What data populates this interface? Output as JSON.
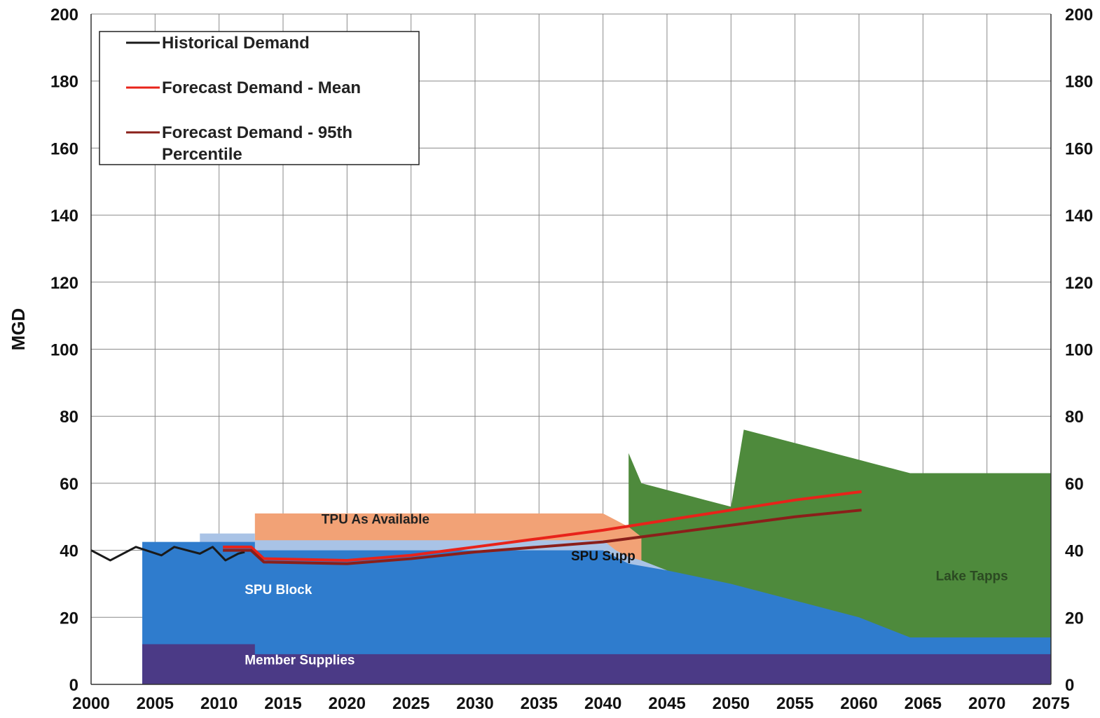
{
  "chart_data": {
    "type": "area",
    "title": "",
    "xlabel": "",
    "ylabel": "MGD",
    "xlim": [
      2000,
      2075
    ],
    "ylim": [
      0,
      200
    ],
    "x_ticks": [
      "2000",
      "2005",
      "2010",
      "2015",
      "2020",
      "2025",
      "2030",
      "2035",
      "2040",
      "2045",
      "2050",
      "2055",
      "2060",
      "2065",
      "2070",
      "2075"
    ],
    "y_ticks": [
      "0",
      "20",
      "40",
      "60",
      "80",
      "100",
      "120",
      "140",
      "160",
      "180",
      "200"
    ],
    "grid": true,
    "legend_position": "top-left",
    "legend": [
      {
        "label": "Historical Demand",
        "color": "#1a1a1a"
      },
      {
        "label": "Forecast Demand - Mean",
        "color": "#e8231a"
      },
      {
        "label": "Forecast Demand - 95th Percentile",
        "color": "#8a1f1a"
      }
    ],
    "areas": [
      {
        "name": "Member Supplies",
        "color": "#4b3a86",
        "label_color": "#ffffff",
        "label_at": [
          2012,
          6
        ],
        "points": [
          [
            2004,
            12
          ],
          [
            2012.8,
            12
          ],
          [
            2012.8,
            9
          ],
          [
            2075,
            9
          ]
        ]
      },
      {
        "name": "SPU Block",
        "color": "#2f7ccd",
        "label_color": "#ffffff",
        "label_at": [
          2012,
          27
        ],
        "points": [
          [
            2004,
            42.5
          ],
          [
            2012.8,
            42.5
          ],
          [
            2012.8,
            40
          ],
          [
            2040,
            40
          ],
          [
            2042,
            36
          ],
          [
            2045,
            34
          ],
          [
            2050,
            30
          ],
          [
            2055,
            25
          ],
          [
            2060,
            20
          ],
          [
            2064,
            14
          ],
          [
            2075,
            14
          ]
        ]
      },
      {
        "name": "SPU Supp",
        "color": "#a9c3e6",
        "label_color": "#111111",
        "label_at": [
          2037.5,
          37
        ],
        "points": [
          [
            2008.5,
            45
          ],
          [
            2012.8,
            45
          ],
          [
            2012.8,
            43
          ],
          [
            2040,
            43
          ],
          [
            2041,
            40
          ],
          [
            2042,
            38
          ],
          [
            2043,
            37
          ],
          [
            2045,
            34
          ]
        ]
      },
      {
        "name": "TPU As Available",
        "color": "#f2a276",
        "label_color": "#222222",
        "label_at": [
          2018,
          48
        ],
        "points": [
          [
            2012.8,
            51
          ],
          [
            2040,
            51
          ],
          [
            2041,
            49
          ],
          [
            2042,
            47
          ],
          [
            2043,
            44
          ]
        ]
      },
      {
        "name": "Lake Tapps",
        "color": "#4e8a3c",
        "label_color": "#2b4a22",
        "label_at": [
          2066,
          31
        ],
        "points": [
          [
            2042,
            69
          ],
          [
            2043,
            60
          ],
          [
            2044,
            59
          ],
          [
            2045,
            58
          ],
          [
            2046,
            57
          ],
          [
            2047,
            56
          ],
          [
            2048,
            55
          ],
          [
            2049,
            54
          ],
          [
            2050,
            53
          ],
          [
            2051,
            76
          ],
          [
            2052,
            75
          ],
          [
            2053,
            74
          ],
          [
            2054,
            73
          ],
          [
            2055,
            72
          ],
          [
            2056,
            71
          ],
          [
            2057,
            70
          ],
          [
            2058,
            69
          ],
          [
            2059,
            68
          ],
          [
            2060,
            67
          ],
          [
            2061,
            66
          ],
          [
            2062,
            65
          ],
          [
            2063,
            64
          ],
          [
            2064,
            63
          ],
          [
            2075,
            63
          ]
        ]
      }
    ],
    "series": [
      {
        "name": "Historical Demand",
        "color": "#1a1a1a",
        "width": 3,
        "x": [
          2000,
          2001.5,
          2003.5,
          2005.5,
          2006.5,
          2008.5,
          2009.5,
          2010.5,
          2011.5,
          2012
        ],
        "y": [
          40,
          37,
          41,
          38.5,
          41,
          39,
          41,
          37,
          39,
          39.5
        ]
      },
      {
        "name": "Forecast Demand - Mean",
        "color": "#e8231a",
        "width": 4,
        "x": [
          2010.3,
          2012.5,
          2013.5,
          2020,
          2025,
          2030,
          2035,
          2040,
          2045,
          2050,
          2055,
          2060.2
        ],
        "y": [
          41,
          41,
          37.5,
          37,
          38.5,
          41,
          43.5,
          46,
          49,
          52,
          55,
          57.5
        ]
      },
      {
        "name": "Forecast Demand - 95th Percentile",
        "color": "#8a1f1a",
        "width": 4,
        "x": [
          2010.3,
          2012.5,
          2013.5,
          2020,
          2025,
          2030,
          2035,
          2040,
          2045,
          2050,
          2055,
          2060.2
        ],
        "y": [
          40,
          40,
          36.5,
          36,
          37.5,
          39.5,
          41,
          42.5,
          45,
          47.5,
          50,
          52
        ]
      }
    ]
  }
}
